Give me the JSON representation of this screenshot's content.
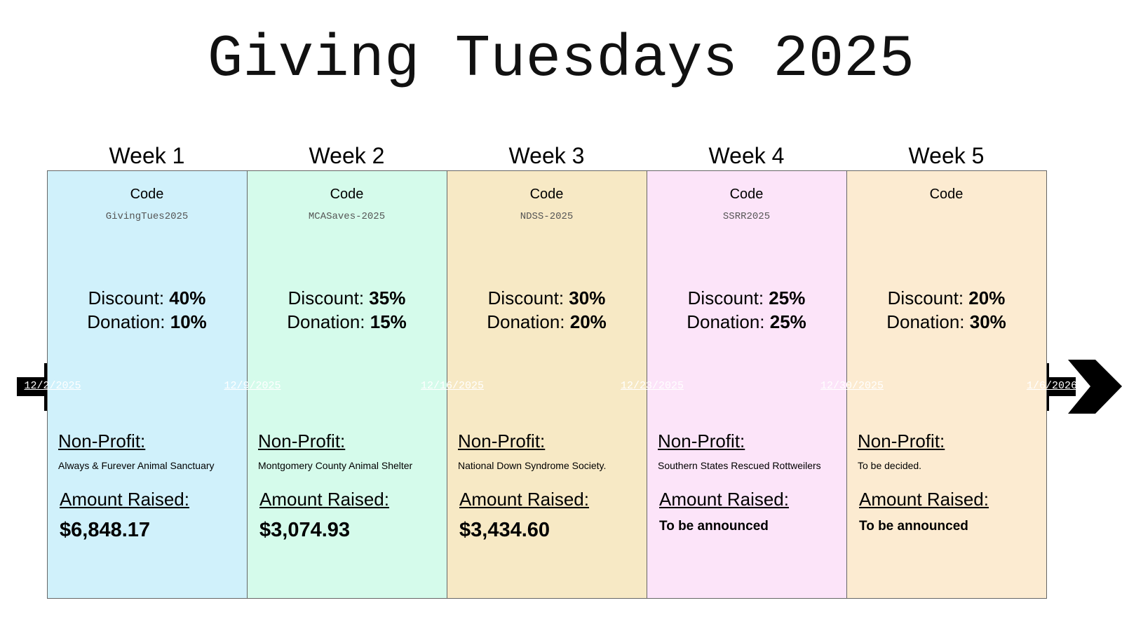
{
  "title": "Giving Tuesdays 2025",
  "weeks": [
    {
      "label": "Week 1",
      "code_label": "Code",
      "code": "GivingTues2025",
      "discount_label": "Discount:",
      "discount": "40%",
      "donation_label": "Donation:",
      "donation": "10%",
      "nonprofit_label": "Non-Profit:",
      "nonprofit": "Always & Furever Animal Sanctuary",
      "amount_label": "Amount Raised:",
      "amount": "$6,848.17"
    },
    {
      "label": "Week 2",
      "code_label": "Code",
      "code": "MCASaves-2025",
      "discount_label": "Discount:",
      "discount": "35%",
      "donation_label": "Donation:",
      "donation": "15%",
      "nonprofit_label": "Non-Profit:",
      "nonprofit": "Montgomery County Animal Shelter",
      "amount_label": "Amount Raised:",
      "amount": "$3,074.93"
    },
    {
      "label": "Week 3",
      "code_label": "Code",
      "code": "NDSS-2025",
      "discount_label": "Discount:",
      "discount": "30%",
      "donation_label": "Donation:",
      "donation": "20%",
      "nonprofit_label": "Non-Profit:",
      "nonprofit": "National Down Syndrome Society.",
      "amount_label": "Amount Raised:",
      "amount": "$3,434.60"
    },
    {
      "label": "Week 4",
      "code_label": "Code",
      "code": "SSRR2025",
      "discount_label": "Discount:",
      "discount": "25%",
      "donation_label": "Donation:",
      "donation": "25%",
      "nonprofit_label": "Non-Profit:",
      "nonprofit": "Southern States Rescued Rottweilers",
      "amount_label": "Amount Raised:",
      "amount": "To be announced"
    },
    {
      "label": "Week 5",
      "code_label": "Code",
      "discount_label": "Discount:",
      "discount": "20%",
      "donation_label": "Donation:",
      "donation": "30%",
      "nonprofit_label": "Non-Profit:",
      "nonprofit": "To be decided.",
      "amount_label": "Amount Raised:",
      "amount": "To be announced"
    }
  ],
  "dates": [
    "12/2/2025",
    "12/9/2025",
    "12/16/2025",
    "12/23/2025",
    "12/30/2025",
    "1/6/2026"
  ]
}
